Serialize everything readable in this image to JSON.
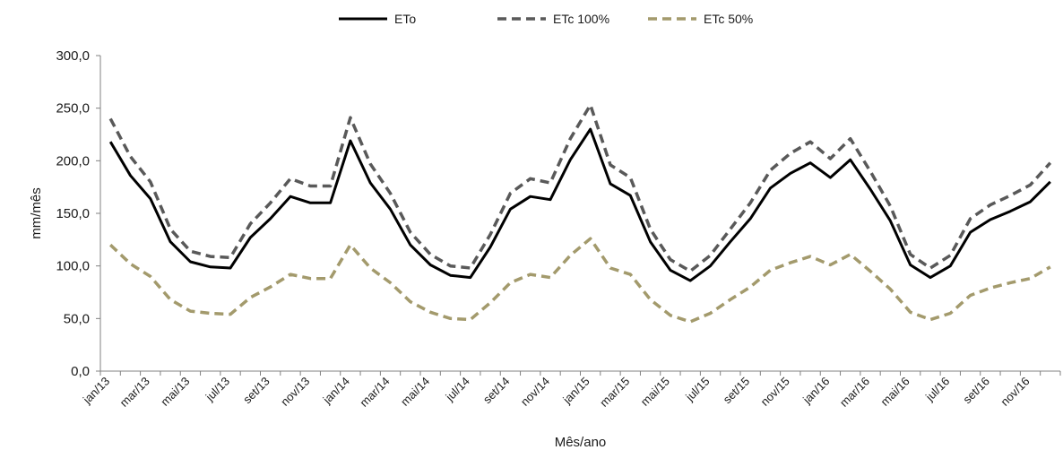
{
  "chart_data": {
    "type": "line",
    "title": "",
    "xlabel": "Mês/ano",
    "ylabel": "mm/mês",
    "ylim": [
      0,
      300
    ],
    "yticks": [
      "0,0",
      "50,0",
      "100,0",
      "150,0",
      "200,0",
      "250,0",
      "300,0"
    ],
    "grid": false,
    "legend_position": "top-center",
    "categories": [
      "jan/13",
      "fev/13",
      "mar/13",
      "abr/13",
      "mai/13",
      "jun/13",
      "jul/13",
      "ago/13",
      "set/13",
      "out/13",
      "nov/13",
      "dez/13",
      "jan/14",
      "fev/14",
      "mar/14",
      "abr/14",
      "mai/14",
      "jun/14",
      "jul/14",
      "ago/14",
      "set/14",
      "out/14",
      "nov/14",
      "dez/14",
      "jan/15",
      "fev/15",
      "mar/15",
      "abr/15",
      "mai/15",
      "jun/15",
      "jul/15",
      "ago/15",
      "set/15",
      "out/15",
      "nov/15",
      "dez/15",
      "jan/16",
      "fev/16",
      "mar/16",
      "abr/16",
      "mai/16",
      "jun/16",
      "jul/16",
      "ago/16",
      "set/16",
      "out/16",
      "nov/16",
      "dez/16"
    ],
    "tick_labels": [
      "jan/13",
      "mar/13",
      "mai/13",
      "jul/13",
      "set/13",
      "nov/13",
      "jan/14",
      "mar/14",
      "mai/14",
      "jul/14",
      "set/14",
      "nov/14",
      "jan/15",
      "mar/15",
      "mai/15",
      "jul/15",
      "set/15",
      "nov/15",
      "jan/16",
      "mar/16",
      "mai/16",
      "jul/16",
      "set/16",
      "nov/16"
    ],
    "series": [
      {
        "name": "ETo",
        "color": "#000000",
        "style": "solid",
        "values": [
          218,
          186,
          164,
          123,
          104,
          99,
          98,
          127,
          145,
          166,
          160,
          160,
          219,
          179,
          154,
          120,
          101,
          91,
          89,
          118,
          154,
          166,
          163,
          201,
          230,
          178,
          167,
          123,
          96,
          86,
          100,
          123,
          145,
          174,
          188,
          198,
          184,
          201,
          173,
          143,
          101,
          89,
          100,
          132,
          144,
          152,
          161,
          180
        ]
      },
      {
        "name": "ETc 100%",
        "color": "#595959",
        "style": "dashed",
        "values": [
          240,
          204,
          180,
          135,
          114,
          109,
          108,
          140,
          160,
          183,
          176,
          176,
          241,
          197,
          169,
          132,
          111,
          100,
          98,
          130,
          169,
          183,
          179,
          221,
          253,
          196,
          184,
          135,
          106,
          95,
          110,
          135,
          160,
          191,
          207,
          218,
          202,
          221,
          190,
          157,
          111,
          98,
          110,
          145,
          158,
          167,
          177,
          198
        ]
      },
      {
        "name": "ETc 50%",
        "color": "#a39a6c",
        "style": "dashed",
        "values": [
          120,
          102,
          90,
          68,
          57,
          55,
          54,
          70,
          80,
          92,
          88,
          88,
          120,
          98,
          84,
          66,
          56,
          50,
          49,
          65,
          84,
          92,
          89,
          110,
          126,
          98,
          92,
          68,
          53,
          47,
          55,
          68,
          80,
          96,
          103,
          109,
          101,
          111,
          95,
          78,
          56,
          49,
          55,
          72,
          79,
          84,
          88,
          99
        ]
      }
    ]
  }
}
